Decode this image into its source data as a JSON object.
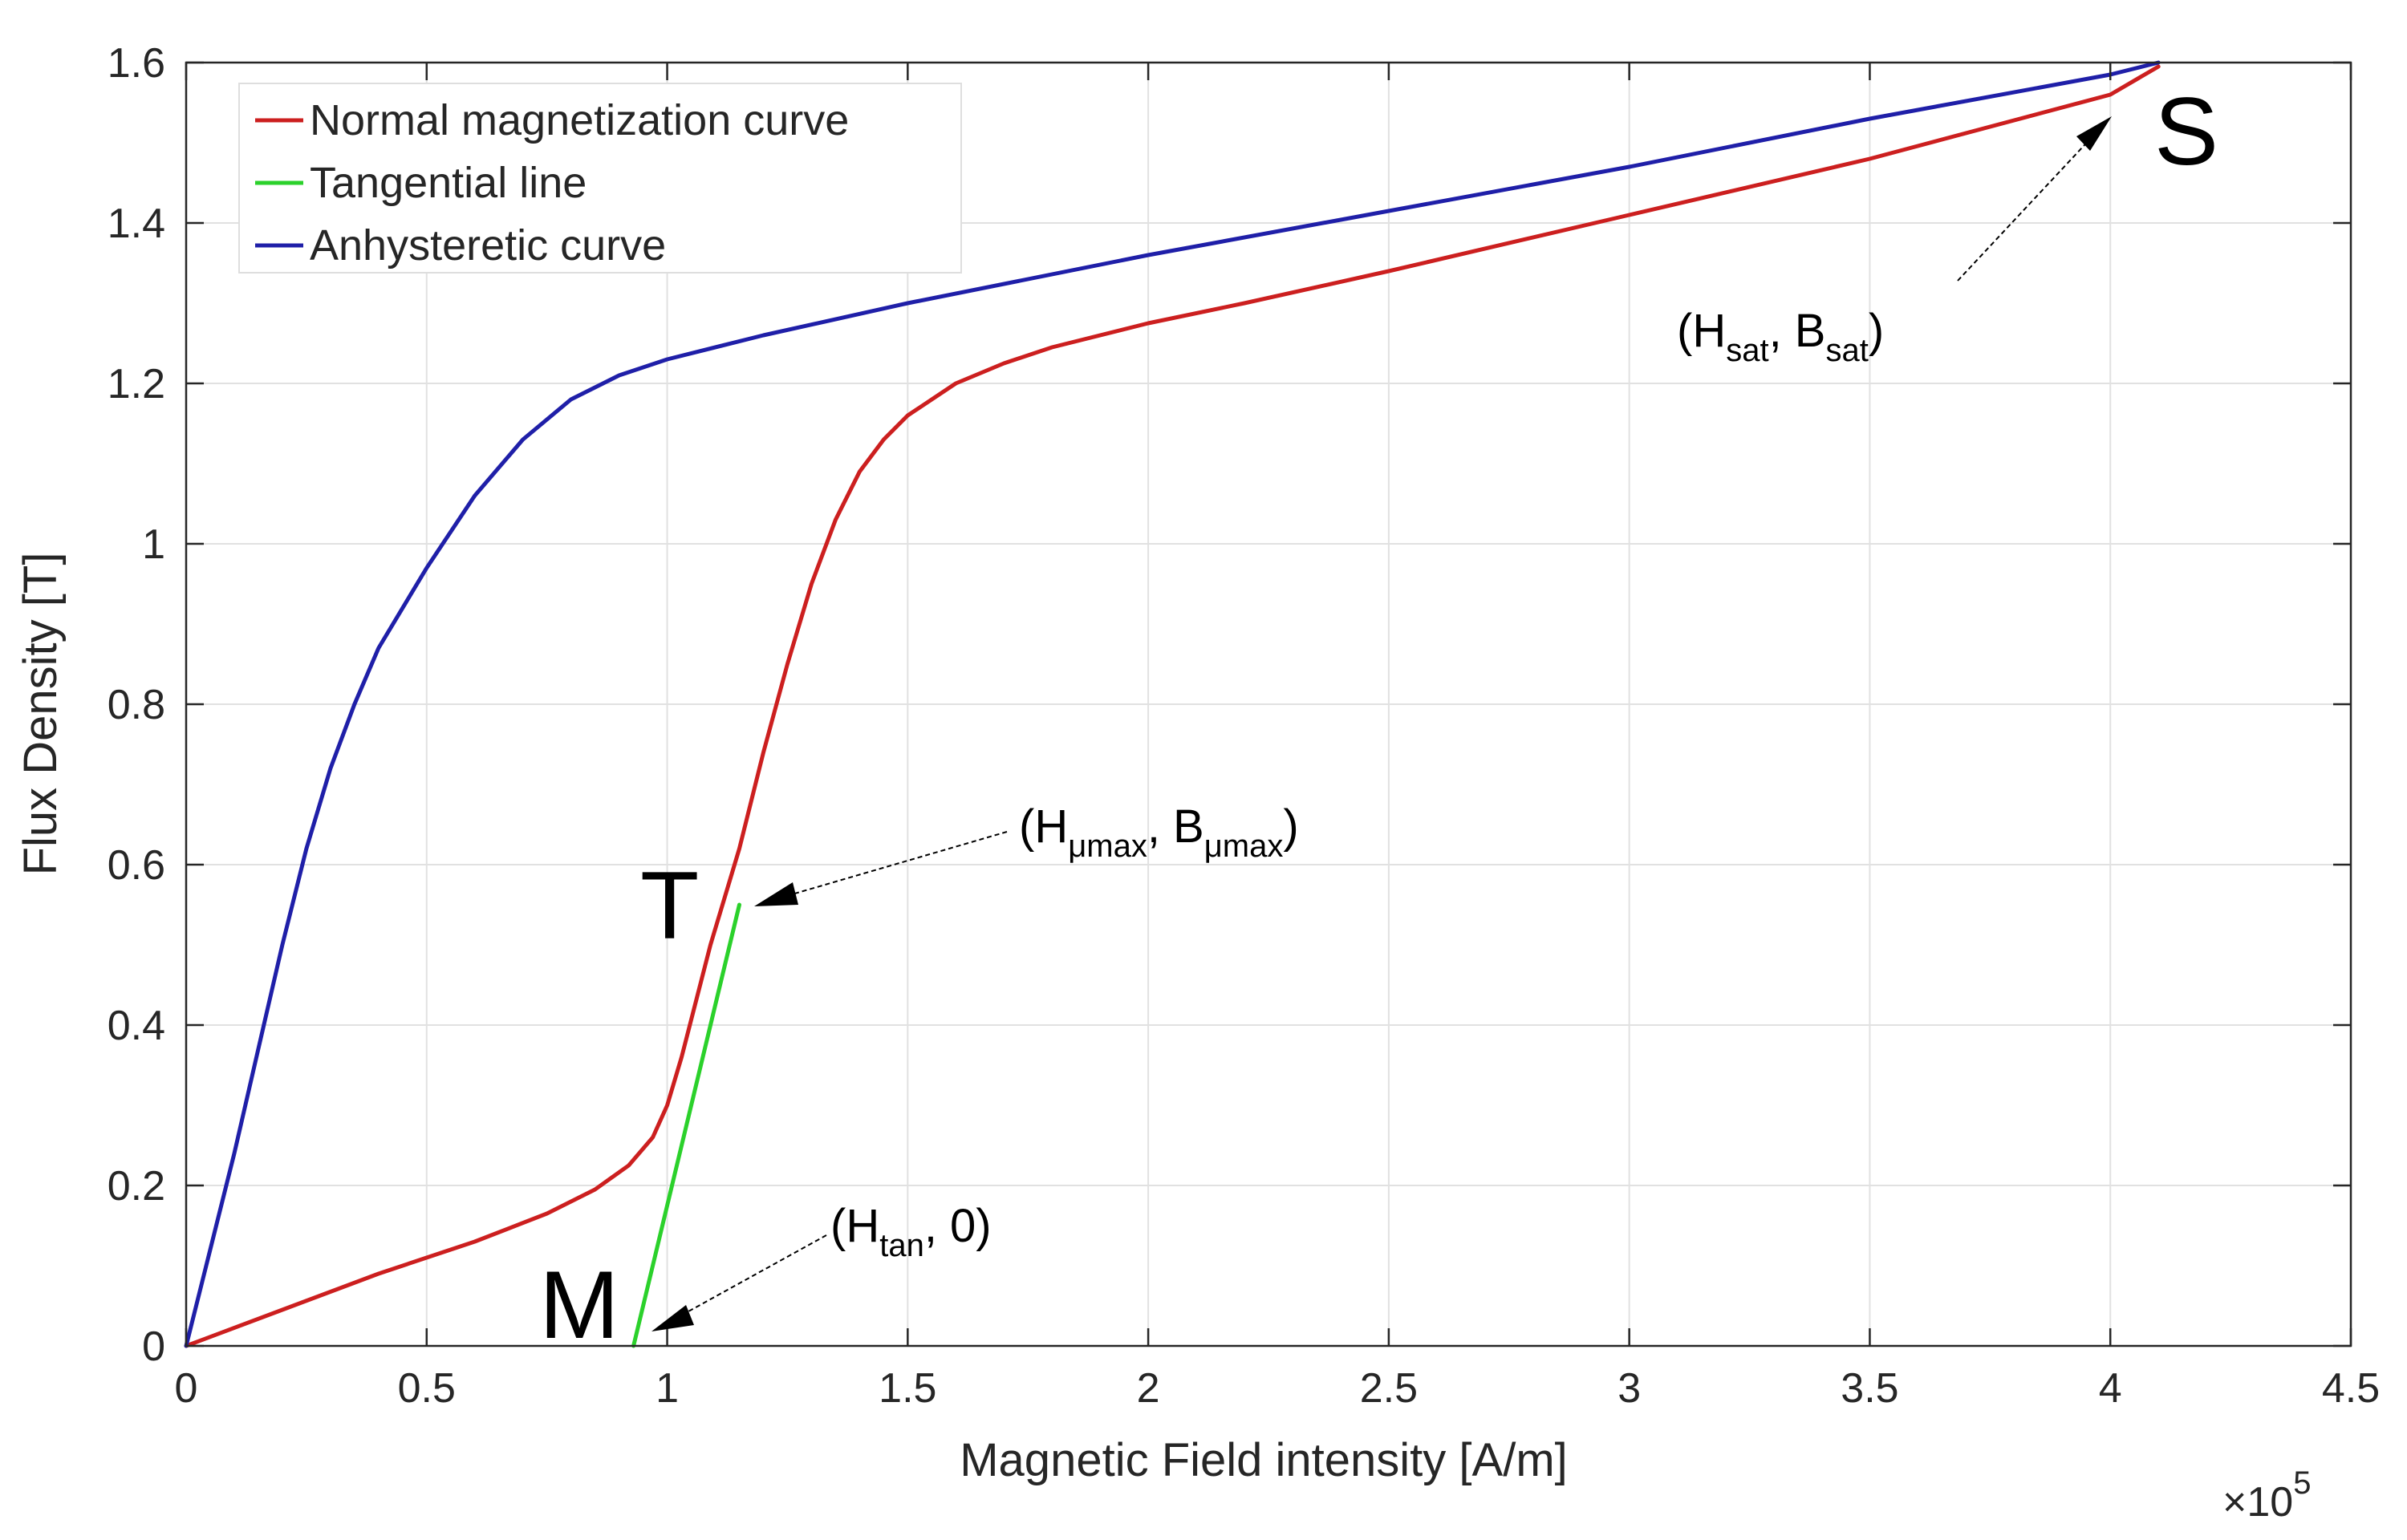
{
  "chart_data": {
    "type": "line",
    "title": "",
    "xlabel": "Magnetic Field intensity [A/m]",
    "ylabel": "Flux Density [T]",
    "x_exponent_label": "×10",
    "x_exponent_power": "5",
    "xlim": [
      0,
      4.5
    ],
    "ylim": [
      0,
      1.6
    ],
    "xticks": [
      0,
      0.5,
      1,
      1.5,
      2,
      2.5,
      3,
      3.5,
      4,
      4.5
    ],
    "xtick_labels": [
      "0",
      "0.5",
      "1",
      "1.5",
      "2",
      "2.5",
      "3",
      "3.5",
      "4",
      "4.5"
    ],
    "yticks": [
      0,
      0.2,
      0.4,
      0.6,
      0.8,
      1,
      1.2,
      1.4,
      1.6
    ],
    "ytick_labels": [
      "0",
      "0.2",
      "0.4",
      "0.6",
      "0.8",
      "1",
      "1.2",
      "1.4",
      "1.6"
    ],
    "grid": true,
    "legend_position": "top-left",
    "series": [
      {
        "name": "Normal magnetization curve",
        "color": "#cc1f1f",
        "x": [
          0,
          0.2,
          0.4,
          0.6,
          0.75,
          0.85,
          0.92,
          0.97,
          1.0,
          1.03,
          1.06,
          1.09,
          1.12,
          1.15,
          1.2,
          1.25,
          1.3,
          1.35,
          1.4,
          1.45,
          1.5,
          1.6,
          1.7,
          1.8,
          2.0,
          2.2,
          2.5,
          3.0,
          3.5,
          4.0,
          4.1
        ],
        "y": [
          0,
          0.045,
          0.09,
          0.13,
          0.165,
          0.195,
          0.225,
          0.26,
          0.3,
          0.36,
          0.43,
          0.5,
          0.56,
          0.62,
          0.74,
          0.85,
          0.95,
          1.03,
          1.09,
          1.13,
          1.16,
          1.2,
          1.225,
          1.245,
          1.275,
          1.3,
          1.34,
          1.41,
          1.48,
          1.56,
          1.595
        ]
      },
      {
        "name": "Tangential line",
        "color": "#2bd12b",
        "x": [
          0.93,
          1.15
        ],
        "y": [
          0,
          0.55
        ]
      },
      {
        "name": "Anhysteretic curve",
        "color": "#1f1fa8",
        "x": [
          0,
          0.05,
          0.1,
          0.15,
          0.2,
          0.25,
          0.3,
          0.35,
          0.4,
          0.5,
          0.6,
          0.7,
          0.8,
          0.9,
          1.0,
          1.2,
          1.5,
          2.0,
          2.5,
          3.0,
          3.5,
          4.0,
          4.1
        ],
        "y": [
          0,
          0.12,
          0.24,
          0.37,
          0.5,
          0.62,
          0.72,
          0.8,
          0.87,
          0.97,
          1.06,
          1.13,
          1.18,
          1.21,
          1.23,
          1.26,
          1.3,
          1.36,
          1.415,
          1.47,
          1.53,
          1.585,
          1.6
        ]
      }
    ],
    "annotations": {
      "point_S": "S",
      "point_T": "T",
      "point_M": "M",
      "sat_label": {
        "open": "(H",
        "sub1": "sat",
        "mid": ", B",
        "sub2": "sat",
        "close": ")"
      },
      "mumax_label": {
        "open": "(H",
        "sub1": "μmax",
        "mid": ", B",
        "sub2": "μmax",
        "close": ")"
      },
      "tan_label": {
        "open": "(H",
        "sub1": "tan",
        "close": ", 0)"
      }
    },
    "colors": {
      "axis": "#262626",
      "grid": "#e1e1e1"
    }
  }
}
